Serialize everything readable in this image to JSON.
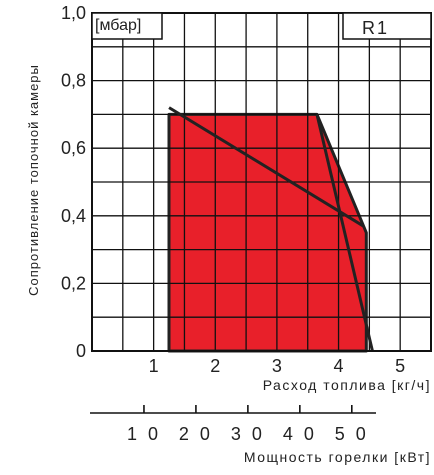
{
  "chart_data": {
    "type": "area",
    "title": "R1",
    "unit_label": "[мбар]",
    "ylabel": "Сопротивление топочной камеры",
    "xlabel": "Расход топлива [кг/ч]",
    "secondary_xlabel": "Мощность горелки [кВт]",
    "xlim": [
      0,
      5.5
    ],
    "ylim": [
      0,
      1.0
    ],
    "x_ticks": [
      1,
      2,
      3,
      4,
      5
    ],
    "x_tick_labels": [
      "1",
      "2",
      "3",
      "4",
      "5"
    ],
    "y_ticks": [
      0,
      0.2,
      0.4,
      0.6,
      0.8,
      1.0
    ],
    "y_tick_labels": [
      "0",
      "0,2",
      "0,4",
      "0,6",
      "0,8",
      "1,0"
    ],
    "secondary_ticks": [
      10,
      20,
      30,
      40,
      50
    ],
    "secondary_tick_labels": [
      "1 0",
      "2 0",
      "3 0",
      "4 0",
      "5 0"
    ],
    "secondary_x_per_unit": 0.0843,
    "grid": true,
    "region": {
      "x": [
        1.25,
        1.25,
        3.65,
        4.55,
        4.55,
        4.45
      ],
      "y": [
        0.0,
        0.7,
        0.7,
        0.0,
        0.0,
        0.0
      ],
      "polygon": [
        [
          1.25,
          0.0
        ],
        [
          1.25,
          0.7
        ],
        [
          3.65,
          0.7
        ],
        [
          4.45,
          0.35
        ],
        [
          4.45,
          0.0
        ]
      ]
    },
    "region_color": "#e8202a",
    "lines": [
      {
        "points": [
          [
            1.25,
            0.72
          ],
          [
            4.4,
            0.37
          ]
        ]
      },
      {
        "points": [
          [
            3.65,
            0.7
          ],
          [
            4.55,
            0.0
          ]
        ]
      }
    ]
  }
}
